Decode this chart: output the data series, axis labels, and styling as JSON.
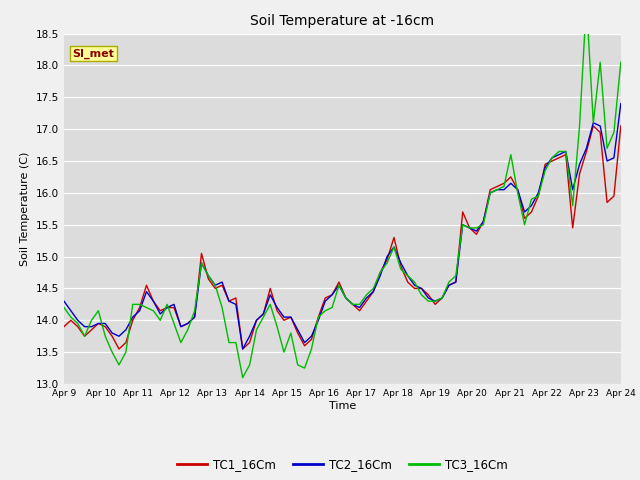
{
  "title": "Soil Temperature at -16cm",
  "ylabel": "Soil Temperature (C)",
  "xlabel": "Time",
  "annotation": "SI_met",
  "ylim": [
    13.0,
    18.5
  ],
  "yticks": [
    13.0,
    13.5,
    14.0,
    14.5,
    15.0,
    15.5,
    16.0,
    16.5,
    17.0,
    17.5,
    18.0,
    18.5
  ],
  "xtick_labels": [
    "Apr 9",
    "Apr 10",
    "Apr 11",
    "Apr 12",
    "Apr 13",
    "Apr 14",
    "Apr 15",
    "Apr 16",
    "Apr 17",
    "Apr 18",
    "Apr 19",
    "Apr 20",
    "Apr 21",
    "Apr 22",
    "Apr 23",
    "Apr 24"
  ],
  "fig_bg_color": "#f0f0f0",
  "plot_bg_color": "#dcdcdc",
  "legend_entries": [
    "TC1_16Cm",
    "TC2_16Cm",
    "TC3_16Cm"
  ],
  "line_colors": [
    "#cc0000",
    "#0000cc",
    "#00bb00"
  ],
  "line_width": 1.0,
  "TC1_16Cm": [
    13.9,
    14.0,
    13.9,
    13.75,
    13.85,
    13.95,
    13.9,
    13.75,
    13.55,
    13.65,
    14.0,
    14.2,
    14.55,
    14.3,
    14.15,
    14.2,
    14.2,
    13.9,
    13.95,
    14.05,
    15.05,
    14.65,
    14.5,
    14.55,
    14.3,
    14.35,
    13.55,
    13.65,
    14.0,
    14.1,
    14.5,
    14.15,
    14.0,
    14.05,
    13.8,
    13.6,
    13.7,
    14.05,
    14.35,
    14.4,
    14.6,
    14.35,
    14.25,
    14.15,
    14.3,
    14.45,
    14.75,
    14.95,
    15.3,
    14.85,
    14.6,
    14.5,
    14.5,
    14.4,
    14.25,
    14.35,
    14.55,
    14.6,
    15.7,
    15.45,
    15.35,
    15.55,
    16.05,
    16.1,
    16.15,
    16.25,
    16.05,
    15.6,
    15.7,
    15.95,
    16.45,
    16.5,
    16.55,
    16.6,
    15.45,
    16.3,
    16.65,
    17.05,
    16.95,
    15.85,
    15.95,
    17.05
  ],
  "TC2_16Cm": [
    14.3,
    14.15,
    14.0,
    13.9,
    13.9,
    13.95,
    13.95,
    13.8,
    13.75,
    13.85,
    14.05,
    14.15,
    14.45,
    14.3,
    14.1,
    14.2,
    14.25,
    13.9,
    13.95,
    14.05,
    14.9,
    14.7,
    14.55,
    14.6,
    14.3,
    14.25,
    13.55,
    13.75,
    14.0,
    14.1,
    14.4,
    14.2,
    14.05,
    14.05,
    13.85,
    13.65,
    13.75,
    14.0,
    14.3,
    14.4,
    14.55,
    14.35,
    14.25,
    14.2,
    14.35,
    14.45,
    14.7,
    15.0,
    15.15,
    14.9,
    14.7,
    14.55,
    14.5,
    14.35,
    14.3,
    14.35,
    14.55,
    14.6,
    15.5,
    15.45,
    15.4,
    15.55,
    16.0,
    16.05,
    16.05,
    16.15,
    16.05,
    15.7,
    15.8,
    16.0,
    16.4,
    16.55,
    16.6,
    16.65,
    16.05,
    16.45,
    16.7,
    17.1,
    17.05,
    16.5,
    16.55,
    17.4
  ],
  "TC3_16Cm": [
    14.2,
    14.05,
    13.95,
    13.75,
    14.0,
    14.15,
    13.75,
    13.5,
    13.3,
    13.5,
    14.25,
    14.25,
    14.2,
    14.15,
    14.0,
    14.25,
    13.95,
    13.65,
    13.85,
    14.15,
    14.9,
    14.7,
    14.55,
    14.2,
    13.65,
    13.65,
    13.1,
    13.3,
    13.85,
    14.05,
    14.25,
    13.9,
    13.5,
    13.8,
    13.3,
    13.25,
    13.55,
    14.05,
    14.15,
    14.2,
    14.55,
    14.35,
    14.25,
    14.25,
    14.4,
    14.5,
    14.75,
    14.9,
    15.15,
    14.8,
    14.7,
    14.6,
    14.4,
    14.3,
    14.3,
    14.35,
    14.6,
    14.7,
    15.5,
    15.45,
    15.45,
    15.5,
    16.0,
    16.05,
    16.1,
    16.6,
    16.0,
    15.5,
    15.9,
    15.95,
    16.35,
    16.55,
    16.65,
    16.65,
    15.8,
    17.05,
    19.0,
    17.1,
    18.05,
    16.7,
    16.95,
    18.05
  ]
}
